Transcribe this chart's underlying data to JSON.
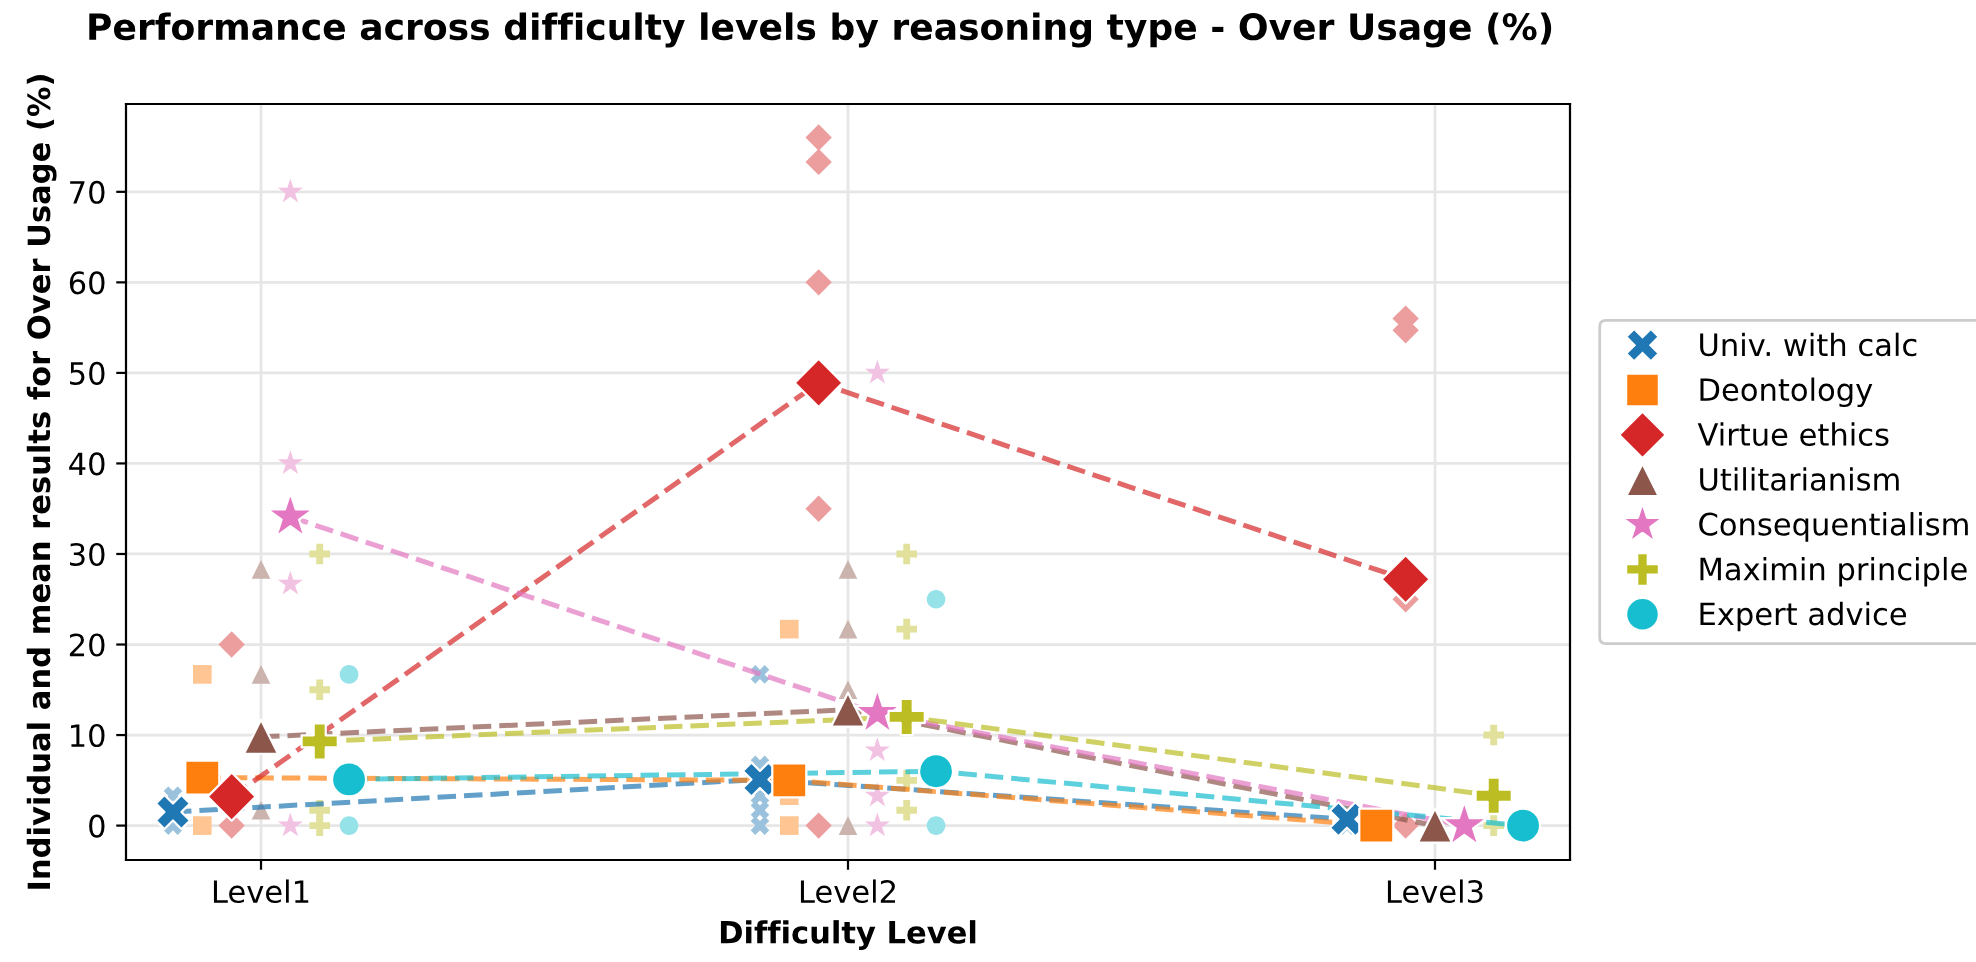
{
  "chart_data": {
    "type": "line",
    "title": "Performance across difficulty levels by reasoning type - Over Usage (%)",
    "xlabel": "Difficulty Level",
    "ylabel": "Individual and mean results for Over Usage (%)",
    "categories": [
      "Level1",
      "Level2",
      "Level3"
    ],
    "ylim": [
      -3.8,
      79.7
    ],
    "yticks": [
      0,
      10,
      20,
      30,
      40,
      50,
      60,
      70
    ],
    "grid": true,
    "legend": "right",
    "line_style": "dashed",
    "series": [
      {
        "name": "Univ. with calc",
        "marker": "cross",
        "color": "#1f77b4",
        "values": [
          1.5,
          5.1,
          0.7
        ]
      },
      {
        "name": "Deontology",
        "marker": "square",
        "color": "#ff7f0e",
        "values": [
          5.3,
          5.0,
          0
        ]
      },
      {
        "name": "Virtue ethics",
        "marker": "diamond",
        "color": "#d62728",
        "values": [
          3.2,
          48.9,
          27.2
        ]
      },
      {
        "name": "Utilitarianism",
        "marker": "triangle",
        "color": "#8c564b",
        "values": [
          9.8,
          12.8,
          0
        ]
      },
      {
        "name": "Consequentialism",
        "marker": "star",
        "color": "#e377c2",
        "values": [
          34.1,
          12.4,
          0
        ]
      },
      {
        "name": "Maximin principle",
        "marker": "plus",
        "color": "#bcbd22",
        "values": [
          9.3,
          12.0,
          3.3
        ]
      },
      {
        "name": "Expert advice",
        "marker": "circle",
        "color": "#17becf",
        "values": [
          5.1,
          6.0,
          0
        ]
      },
      {
        "type": "scatter",
        "marker": "cross",
        "color": "#9ac2dd",
        "x": [
          "Level1",
          "Level1",
          "Level2",
          "Level2",
          "Level2",
          "Level2",
          "Level2",
          "Level3"
        ],
        "values": [
          3.3,
          0,
          16.7,
          6.7,
          3.3,
          1.7,
          0,
          0
        ]
      },
      {
        "type": "scatter",
        "marker": "square",
        "color": "#ffc592",
        "x": [
          "Level1",
          "Level1",
          "Level2",
          "Level2",
          "Level2"
        ],
        "values": [
          16.7,
          0,
          21.7,
          3.3,
          0
        ]
      },
      {
        "type": "scatter",
        "marker": "diamond",
        "color": "#ec9e9e",
        "x": [
          "Level1",
          "Level1",
          "Level2",
          "Level2",
          "Level2",
          "Level2",
          "Level2",
          "Level3",
          "Level3",
          "Level3",
          "Level3"
        ],
        "values": [
          20,
          0,
          76,
          73.3,
          60,
          35,
          0,
          56,
          54.7,
          25,
          0
        ]
      },
      {
        "type": "scatter",
        "marker": "triangle",
        "color": "#cbb3ae",
        "x": [
          "Level1",
          "Level1",
          "Level1",
          "Level2",
          "Level2",
          "Level2",
          "Level2"
        ],
        "values": [
          28.3,
          16.7,
          1.7,
          28.3,
          21.7,
          15,
          0
        ]
      },
      {
        "type": "scatter",
        "marker": "star",
        "color": "#f2c2e3",
        "x": [
          "Level1",
          "Level1",
          "Level1",
          "Level1",
          "Level2",
          "Level2",
          "Level2",
          "Level2"
        ],
        "values": [
          70,
          40,
          26.7,
          0,
          50,
          8.3,
          3.3,
          0
        ]
      },
      {
        "type": "scatter",
        "marker": "plus",
        "color": "#e1e19b",
        "x": [
          "Level1",
          "Level1",
          "Level1",
          "Level1",
          "Level2",
          "Level2",
          "Level2",
          "Level2",
          "Level3",
          "Level3"
        ],
        "values": [
          30,
          15,
          1.7,
          0,
          30,
          21.7,
          5,
          1.7,
          10,
          0
        ]
      },
      {
        "type": "scatter",
        "marker": "circle",
        "color": "#96e2e9",
        "x": [
          "Level1",
          "Level1",
          "Level2",
          "Level2"
        ],
        "values": [
          16.7,
          0,
          25,
          0
        ]
      }
    ]
  }
}
